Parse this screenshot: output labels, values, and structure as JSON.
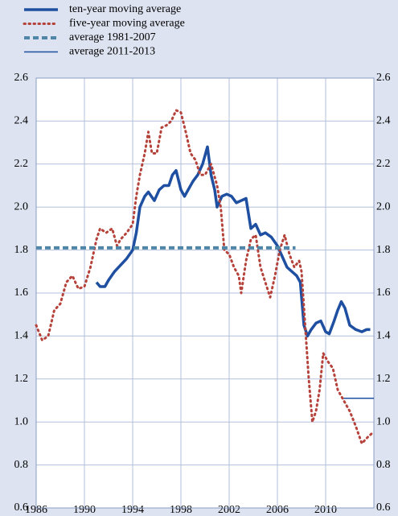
{
  "chart_data": {
    "type": "line",
    "xlim": [
      1986,
      2014
    ],
    "xticks": [
      1986,
      1990,
      1994,
      1998,
      2002,
      2006,
      2010
    ],
    "ylim": [
      0.6,
      2.6
    ],
    "yticks": [
      0.6,
      0.8,
      {
        "value": 1,
        "label": "1.0"
      },
      1.2,
      1.4,
      1.6,
      1.8,
      {
        "value": 2,
        "label": "2.0"
      },
      2.2,
      2.4,
      2.6
    ],
    "grid": true,
    "legend": "top-left",
    "series": [
      {
        "name": "ten-year moving average",
        "color": "#1f4fa0",
        "style": "solid",
        "width": 3.5,
        "x": [
          1991.0,
          1991.3,
          1991.7,
          1992.0,
          1992.5,
          1993.0,
          1993.5,
          1994.0,
          1994.3,
          1994.6,
          1995.0,
          1995.3,
          1995.8,
          1996.2,
          1996.6,
          1997.0,
          1997.3,
          1997.6,
          1998.0,
          1998.3,
          1998.6,
          1999.0,
          1999.4,
          1999.8,
          2000.2,
          2000.5,
          2000.8,
          2001.0,
          2001.4,
          2001.8,
          2002.2,
          2002.6,
          2003.0,
          2003.4,
          2003.8,
          2004.2,
          2004.6,
          2005.0,
          2005.5,
          2006.0,
          2006.4,
          2006.8,
          2007.2,
          2007.6,
          2007.9,
          2008.2,
          2008.5,
          2008.8,
          2009.2,
          2009.6,
          2010.0,
          2010.3,
          2010.7,
          2011.0,
          2011.3,
          2011.6,
          2012.0,
          2012.5,
          2013.0,
          2013.4,
          2013.7
        ],
        "values": [
          1.65,
          1.63,
          1.63,
          1.66,
          1.7,
          1.73,
          1.76,
          1.8,
          1.88,
          2.0,
          2.05,
          2.07,
          2.03,
          2.08,
          2.1,
          2.1,
          2.15,
          2.17,
          2.08,
          2.05,
          2.08,
          2.12,
          2.15,
          2.2,
          2.28,
          2.15,
          2.08,
          2.0,
          2.05,
          2.06,
          2.05,
          2.02,
          2.03,
          2.04,
          1.9,
          1.92,
          1.87,
          1.88,
          1.86,
          1.82,
          1.77,
          1.72,
          1.7,
          1.68,
          1.65,
          1.45,
          1.4,
          1.43,
          1.46,
          1.47,
          1.42,
          1.41,
          1.47,
          1.52,
          1.56,
          1.53,
          1.45,
          1.43,
          1.42,
          1.43,
          1.43
        ]
      },
      {
        "name": "five-year moving average",
        "color": "#b5433b",
        "style": "dotted",
        "width": 3,
        "x": [
          1986.0,
          1986.5,
          1987.0,
          1987.5,
          1988.0,
          1988.5,
          1989.0,
          1989.5,
          1990.0,
          1990.5,
          1991.0,
          1991.3,
          1991.8,
          1992.3,
          1992.7,
          1993.0,
          1993.5,
          1994.0,
          1994.3,
          1994.6,
          1995.0,
          1995.3,
          1995.6,
          1996.0,
          1996.4,
          1996.8,
          1997.2,
          1997.6,
          1998.0,
          1998.4,
          1998.8,
          1999.2,
          1999.6,
          2000.0,
          2000.5,
          2001.0,
          2001.3,
          2001.6,
          2002.0,
          2002.4,
          2002.8,
          2003.0,
          2003.4,
          2003.8,
          2004.2,
          2004.6,
          2005.0,
          2005.4,
          2005.8,
          2006.2,
          2006.6,
          2007.0,
          2007.4,
          2007.8,
          2008.0,
          2008.3,
          2008.6,
          2008.9,
          2009.2,
          2009.5,
          2009.8,
          2010.2,
          2010.6,
          2011.0,
          2011.5,
          2012.0,
          2012.5,
          2013.0,
          2013.5,
          2013.9
        ],
        "values": [
          1.45,
          1.38,
          1.4,
          1.52,
          1.55,
          1.65,
          1.68,
          1.62,
          1.63,
          1.72,
          1.85,
          1.9,
          1.88,
          1.9,
          1.82,
          1.85,
          1.88,
          1.92,
          2.05,
          2.15,
          2.25,
          2.35,
          2.25,
          2.25,
          2.37,
          2.38,
          2.4,
          2.45,
          2.44,
          2.35,
          2.25,
          2.22,
          2.15,
          2.15,
          2.2,
          2.1,
          2.0,
          1.8,
          1.78,
          1.72,
          1.68,
          1.6,
          1.75,
          1.85,
          1.87,
          1.72,
          1.65,
          1.58,
          1.68,
          1.8,
          1.87,
          1.78,
          1.72,
          1.75,
          1.7,
          1.45,
          1.2,
          1.0,
          1.05,
          1.15,
          1.32,
          1.28,
          1.25,
          1.15,
          1.1,
          1.05,
          0.98,
          0.9,
          0.93,
          0.95
        ]
      },
      {
        "name": "average 1981-2007",
        "color": "#4f86a8",
        "style": "dashed",
        "width": 4,
        "x": [
          1986,
          2007.5
        ],
        "values": [
          1.81,
          1.81
        ]
      },
      {
        "name": "average 2011-2013",
        "color": "#1f4fa0",
        "style": "solid",
        "width": 1.5,
        "x": [
          2011.5,
          2014
        ],
        "values": [
          1.11,
          1.11
        ]
      }
    ]
  }
}
